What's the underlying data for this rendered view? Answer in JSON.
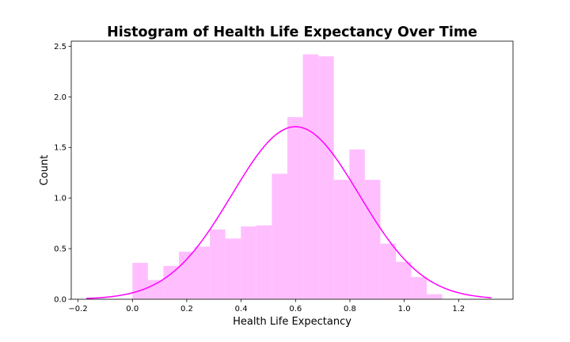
{
  "chart_data": {
    "type": "bar",
    "title": "Histogram of Health Life Expectancy Over Time",
    "xlabel": "Health Life Expectancy",
    "ylabel": "Count",
    "xlim": [
      -0.225,
      1.4
    ],
    "ylim": [
      0,
      2.55
    ],
    "x_ticks": [
      -0.2,
      0.0,
      0.2,
      0.4,
      0.6,
      0.8,
      1.0,
      1.2
    ],
    "x_tick_labels": [
      "−0.2",
      "0.0",
      "0.2",
      "0.4",
      "0.6",
      "0.8",
      "1.0",
      "1.2"
    ],
    "y_ticks": [
      0.0,
      0.5,
      1.0,
      1.5,
      2.0,
      2.5
    ],
    "y_tick_labels": [
      "0.0",
      "0.5",
      "1.0",
      "1.5",
      "2.0",
      "2.5"
    ],
    "bins": [
      {
        "start": 0.0,
        "end": 0.057,
        "value": 0.36
      },
      {
        "start": 0.057,
        "end": 0.114,
        "value": 0.19
      },
      {
        "start": 0.114,
        "end": 0.171,
        "value": 0.33
      },
      {
        "start": 0.171,
        "end": 0.228,
        "value": 0.47
      },
      {
        "start": 0.228,
        "end": 0.285,
        "value": 0.52
      },
      {
        "start": 0.285,
        "end": 0.342,
        "value": 0.69
      },
      {
        "start": 0.342,
        "end": 0.399,
        "value": 0.6
      },
      {
        "start": 0.399,
        "end": 0.456,
        "value": 0.72
      },
      {
        "start": 0.456,
        "end": 0.513,
        "value": 0.73
      },
      {
        "start": 0.513,
        "end": 0.57,
        "value": 1.24
      },
      {
        "start": 0.57,
        "end": 0.627,
        "value": 1.8
      },
      {
        "start": 0.627,
        "end": 0.684,
        "value": 2.42
      },
      {
        "start": 0.684,
        "end": 0.741,
        "value": 2.4
      },
      {
        "start": 0.741,
        "end": 0.798,
        "value": 1.18
      },
      {
        "start": 0.798,
        "end": 0.855,
        "value": 1.48
      },
      {
        "start": 0.855,
        "end": 0.912,
        "value": 1.18
      },
      {
        "start": 0.912,
        "end": 0.969,
        "value": 0.55
      },
      {
        "start": 0.969,
        "end": 1.026,
        "value": 0.37
      },
      {
        "start": 1.026,
        "end": 1.083,
        "value": 0.22
      },
      {
        "start": 1.083,
        "end": 1.14,
        "value": 0.05
      }
    ],
    "curve": {
      "type": "normal-pdf",
      "mean": 0.6,
      "std": 0.234,
      "x_range": [
        -0.17,
        1.32
      ]
    },
    "colors": {
      "bars": "#ffbfff",
      "curve": "#ff00ff",
      "axes": "#000000"
    },
    "grid": false,
    "legend": "none"
  }
}
